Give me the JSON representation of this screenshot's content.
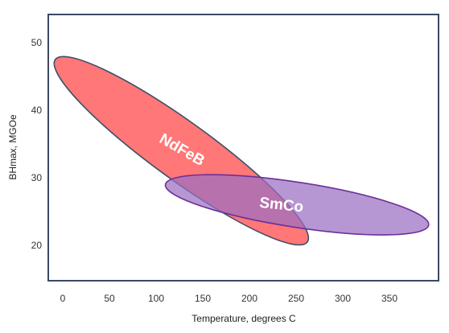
{
  "chart_data": {
    "type": "scatter",
    "title": "",
    "xlabel": "Temperature, degrees C",
    "ylabel": "BHmax, MGOe",
    "x_ticks": [
      0,
      50,
      100,
      150,
      200,
      250,
      300,
      350
    ],
    "y_ticks": [
      20,
      30,
      40,
      50
    ],
    "xlim": [
      -15,
      395
    ],
    "ylim": [
      15,
      54
    ],
    "grid": false,
    "legend": "none",
    "regions": [
      {
        "name": "NdFeB",
        "shape": "ellipse",
        "center": [
          127,
          33.5
        ],
        "semi_major_axis_extent": [
          [
            -8,
            47.5
          ],
          [
            262,
            20.5
          ]
        ],
        "semi_minor_width_mgoe": 9.5,
        "fill": "#ff6b6b",
        "stroke": "#3d4f6b"
      },
      {
        "name": "SmCo",
        "shape": "ellipse",
        "center": [
          269,
          26
        ],
        "semi_major_axis_extent": [
          [
            110,
            29
          ],
          [
            392,
            23
          ]
        ],
        "semi_minor_width_mgoe": 6.5,
        "fill": "#9b6fc2",
        "stroke": "#6a2f9a"
      }
    ]
  }
}
